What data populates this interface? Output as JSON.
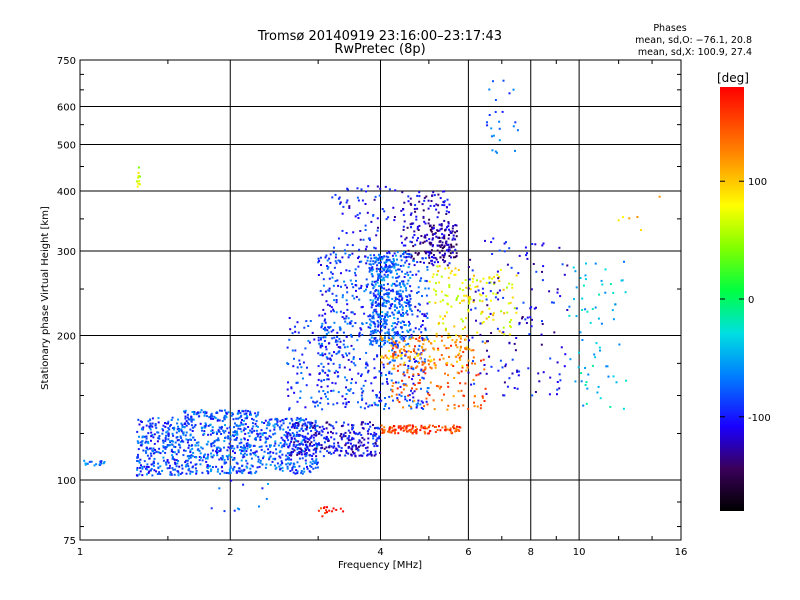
{
  "chart_data": {
    "type": "scatter",
    "title": "Tromsø 20140919 23:16:00–23:17:43",
    "subtitle": "RwPretec (8p)",
    "xlabel": "Frequency [MHz]",
    "ylabel": "Stationary phase Virtual Height [km]",
    "x_scale": "log",
    "y_scale": "log",
    "xlim": [
      1,
      16
    ],
    "ylim": [
      75,
      750
    ],
    "x_ticks": [
      1,
      2,
      4,
      6,
      8,
      10,
      16
    ],
    "y_ticks": [
      75,
      100,
      200,
      300,
      400,
      500,
      600,
      750
    ],
    "grid": true,
    "phases_box": {
      "title": "Phases",
      "line1": "mean, sd,O: −76.1, 20.8",
      "line2": "mean, sd,X: 100.9, 27.4"
    },
    "colorbar": {
      "label": "[deg]",
      "range": [
        -180,
        180
      ],
      "ticks": [
        100,
        0,
        -100
      ],
      "colormap": "rainbow"
    },
    "clusters": [
      {
        "x": [
          1.0,
          1.12
        ],
        "y": [
          107,
          110
        ],
        "phase": -70,
        "n": 18
      },
      {
        "x": [
          1.3,
          1.32
        ],
        "y": [
          400,
          470
        ],
        "phase": 70,
        "n": 10
      },
      {
        "x": [
          1.3,
          1.6
        ],
        "y": [
          102,
          135
        ],
        "phase": -85,
        "n": 260
      },
      {
        "x": [
          1.6,
          2.3
        ],
        "y": [
          103,
          140
        ],
        "phase": -80,
        "n": 500
      },
      {
        "x": [
          2.3,
          3.0
        ],
        "y": [
          103,
          135
        ],
        "phase": -80,
        "n": 280
      },
      {
        "x": [
          2.6,
          4.0
        ],
        "y": [
          112,
          132
        ],
        "phase": -110,
        "n": 300
      },
      {
        "x": [
          2.6,
          3.4
        ],
        "y": [
          140,
          220
        ],
        "phase": -90,
        "n": 100
      },
      {
        "x": [
          3.0,
          5.0
        ],
        "y": [
          140,
          300
        ],
        "phase": -90,
        "n": 600
      },
      {
        "x": [
          3.8,
          4.6
        ],
        "y": [
          190,
          300
        ],
        "phase": -75,
        "n": 400
      },
      {
        "x": [
          3.2,
          4.3
        ],
        "y": [
          300,
          410
        ],
        "phase": -105,
        "n": 70
      },
      {
        "x": [
          4.4,
          5.5
        ],
        "y": [
          280,
          400
        ],
        "phase": -120,
        "n": 160
      },
      {
        "x": [
          5.0,
          5.7
        ],
        "y": [
          290,
          340
        ],
        "phase": -130,
        "n": 100
      },
      {
        "x": [
          4.0,
          5.8
        ],
        "y": [
          125,
          130
        ],
        "phase": 155,
        "n": 120
      },
      {
        "x": [
          4.2,
          6.5
        ],
        "y": [
          140,
          200
        ],
        "phase": 140,
        "n": 150
      },
      {
        "x": [
          4.0,
          6.0
        ],
        "y": [
          170,
          200
        ],
        "phase": 110,
        "n": 110
      },
      {
        "x": [
          5.0,
          7.5
        ],
        "y": [
          200,
          280
        ],
        "phase": 80,
        "n": 140
      },
      {
        "x": [
          6.0,
          9.5
        ],
        "y": [
          150,
          320
        ],
        "phase": -110,
        "n": 150
      },
      {
        "x": [
          6.5,
          7.6
        ],
        "y": [
          480,
          680
        ],
        "phase": -80,
        "n": 24
      },
      {
        "x": [
          9.5,
          12.5
        ],
        "y": [
          140,
          290
        ],
        "phase": -40,
        "n": 70
      },
      {
        "x": [
          3.0,
          3.4
        ],
        "y": [
          84,
          88
        ],
        "phase": 170,
        "n": 15
      },
      {
        "x": [
          1.7,
          2.4
        ],
        "y": [
          86,
          100
        ],
        "phase": -80,
        "n": 12
      },
      {
        "x": [
          12.0,
          14.5
        ],
        "y": [
          330,
          390
        ],
        "phase": 100,
        "n": 6
      }
    ]
  }
}
